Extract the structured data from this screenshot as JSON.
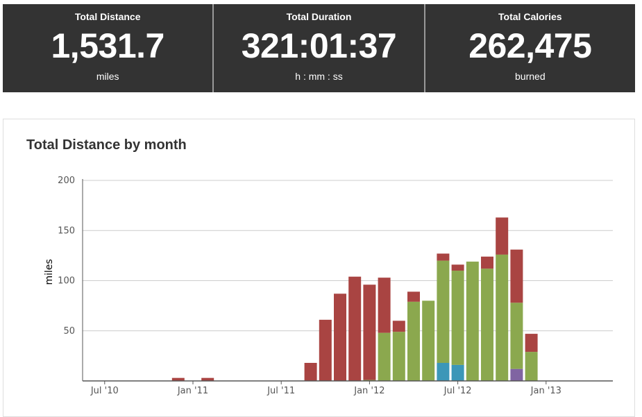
{
  "stats": [
    {
      "label": "Total Distance",
      "value": "1,531.7",
      "unit": "miles"
    },
    {
      "label": "Total Duration",
      "value": "321:01:37",
      "unit": "h : mm : ss"
    },
    {
      "label": "Total Calories",
      "value": "262,475",
      "unit": "burned"
    }
  ],
  "colors": {
    "red": "#a94442",
    "green": "#8ba84e",
    "blue": "#3c97b8",
    "purple": "#8064a2",
    "grid": "#cccccc",
    "axis": "#555555",
    "text": "#555555"
  },
  "chart_data": {
    "type": "bar",
    "stacked": true,
    "title": "Total Distance by month",
    "ylabel": "miles",
    "ylim": [
      0,
      200
    ],
    "yticks": [
      50,
      100,
      150,
      200
    ],
    "grid": true,
    "legend": "none",
    "x_ticks": [
      {
        "label": "Jul '10",
        "month": "2010-07"
      },
      {
        "label": "Jan '11",
        "month": "2011-01"
      },
      {
        "label": "Jul '11",
        "month": "2011-07"
      },
      {
        "label": "Jan '12",
        "month": "2012-01"
      },
      {
        "label": "Jul '12",
        "month": "2012-07"
      },
      {
        "label": "Jan '13",
        "month": "2013-01"
      }
    ],
    "x_range": [
      "2010-06",
      "2013-06"
    ],
    "bars": [
      {
        "month": "2010-12",
        "segments": [
          {
            "color": "red",
            "value": 3
          }
        ]
      },
      {
        "month": "2011-02",
        "segments": [
          {
            "color": "red",
            "value": 3
          }
        ]
      },
      {
        "month": "2011-09",
        "segments": [
          {
            "color": "red",
            "value": 18
          }
        ]
      },
      {
        "month": "2011-10",
        "segments": [
          {
            "color": "red",
            "value": 61
          }
        ]
      },
      {
        "month": "2011-11",
        "segments": [
          {
            "color": "red",
            "value": 87
          }
        ]
      },
      {
        "month": "2011-12",
        "segments": [
          {
            "color": "red",
            "value": 104
          }
        ]
      },
      {
        "month": "2012-01",
        "segments": [
          {
            "color": "green",
            "value": 1
          },
          {
            "color": "red",
            "value": 95
          }
        ]
      },
      {
        "month": "2012-02",
        "segments": [
          {
            "color": "green",
            "value": 48
          },
          {
            "color": "red",
            "value": 55
          }
        ]
      },
      {
        "month": "2012-03",
        "segments": [
          {
            "color": "green",
            "value": 49
          },
          {
            "color": "red",
            "value": 11
          }
        ]
      },
      {
        "month": "2012-04",
        "segments": [
          {
            "color": "green",
            "value": 79
          },
          {
            "color": "red",
            "value": 10
          }
        ]
      },
      {
        "month": "2012-05",
        "segments": [
          {
            "color": "green",
            "value": 80
          }
        ]
      },
      {
        "month": "2012-06",
        "segments": [
          {
            "color": "blue",
            "value": 18
          },
          {
            "color": "green",
            "value": 102
          },
          {
            "color": "red",
            "value": 7
          }
        ]
      },
      {
        "month": "2012-07",
        "segments": [
          {
            "color": "blue",
            "value": 16
          },
          {
            "color": "green",
            "value": 94
          },
          {
            "color": "red",
            "value": 6
          }
        ]
      },
      {
        "month": "2012-08",
        "segments": [
          {
            "color": "green",
            "value": 119
          }
        ]
      },
      {
        "month": "2012-09",
        "segments": [
          {
            "color": "green",
            "value": 112
          },
          {
            "color": "red",
            "value": 12
          }
        ]
      },
      {
        "month": "2012-10",
        "segments": [
          {
            "color": "green",
            "value": 126
          },
          {
            "color": "red",
            "value": 37
          }
        ]
      },
      {
        "month": "2012-11",
        "segments": [
          {
            "color": "purple",
            "value": 12
          },
          {
            "color": "green",
            "value": 66
          },
          {
            "color": "red",
            "value": 53
          }
        ]
      },
      {
        "month": "2012-12",
        "segments": [
          {
            "color": "green",
            "value": 29
          },
          {
            "color": "red",
            "value": 18
          }
        ]
      }
    ]
  }
}
